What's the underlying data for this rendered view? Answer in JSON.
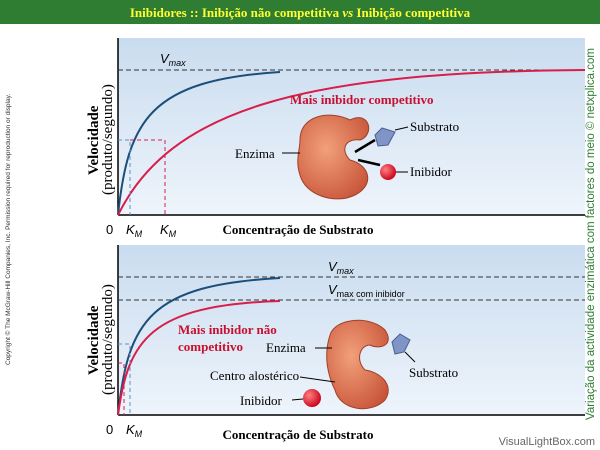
{
  "title": {
    "before": "Inibidores :: Inibição não competitiva ",
    "italic": "vs",
    "after": " Inibição competitiva"
  },
  "copyright": "Copyright © The McGraw-Hill Companies, Inc. Permission required for reproduction or display.",
  "side_note": "Variação da actividade enzimática com factores do meio © netxplica.com",
  "watermark": "VisualLightBox.com",
  "panels": [
    {
      "y_label": [
        "Velocidade",
        "(produto/segundo)"
      ],
      "x_label": "Concentração de Substrato",
      "origin": "0",
      "vmax": {
        "main": "V",
        "sub": "max"
      },
      "km": [
        {
          "main": "K",
          "sub": "M"
        },
        {
          "main": "K",
          "sub": "M"
        }
      ],
      "curve_label": [
        "Mais inibidor competitivo"
      ],
      "enzyme": "Enzima",
      "substrate": "Substrato",
      "inhibitor": "Inibidor"
    },
    {
      "y_label": [
        "Velocidade",
        "(produto/segundo)"
      ],
      "x_label": "Concentração de Substrato",
      "origin": "0",
      "vmax": {
        "main": "V",
        "sub": "max"
      },
      "vmax_inhibited": {
        "main": "V",
        "sub": "max com inibidor"
      },
      "km": [
        {
          "main": "K",
          "sub": "M"
        }
      ],
      "curve_label": [
        "Mais inibidor não",
        "competitivo"
      ],
      "enzyme": "Enzima",
      "substrate": "Substrato",
      "allosteric": "Centro alostérico",
      "inhibitor": "Inibidor"
    }
  ]
}
